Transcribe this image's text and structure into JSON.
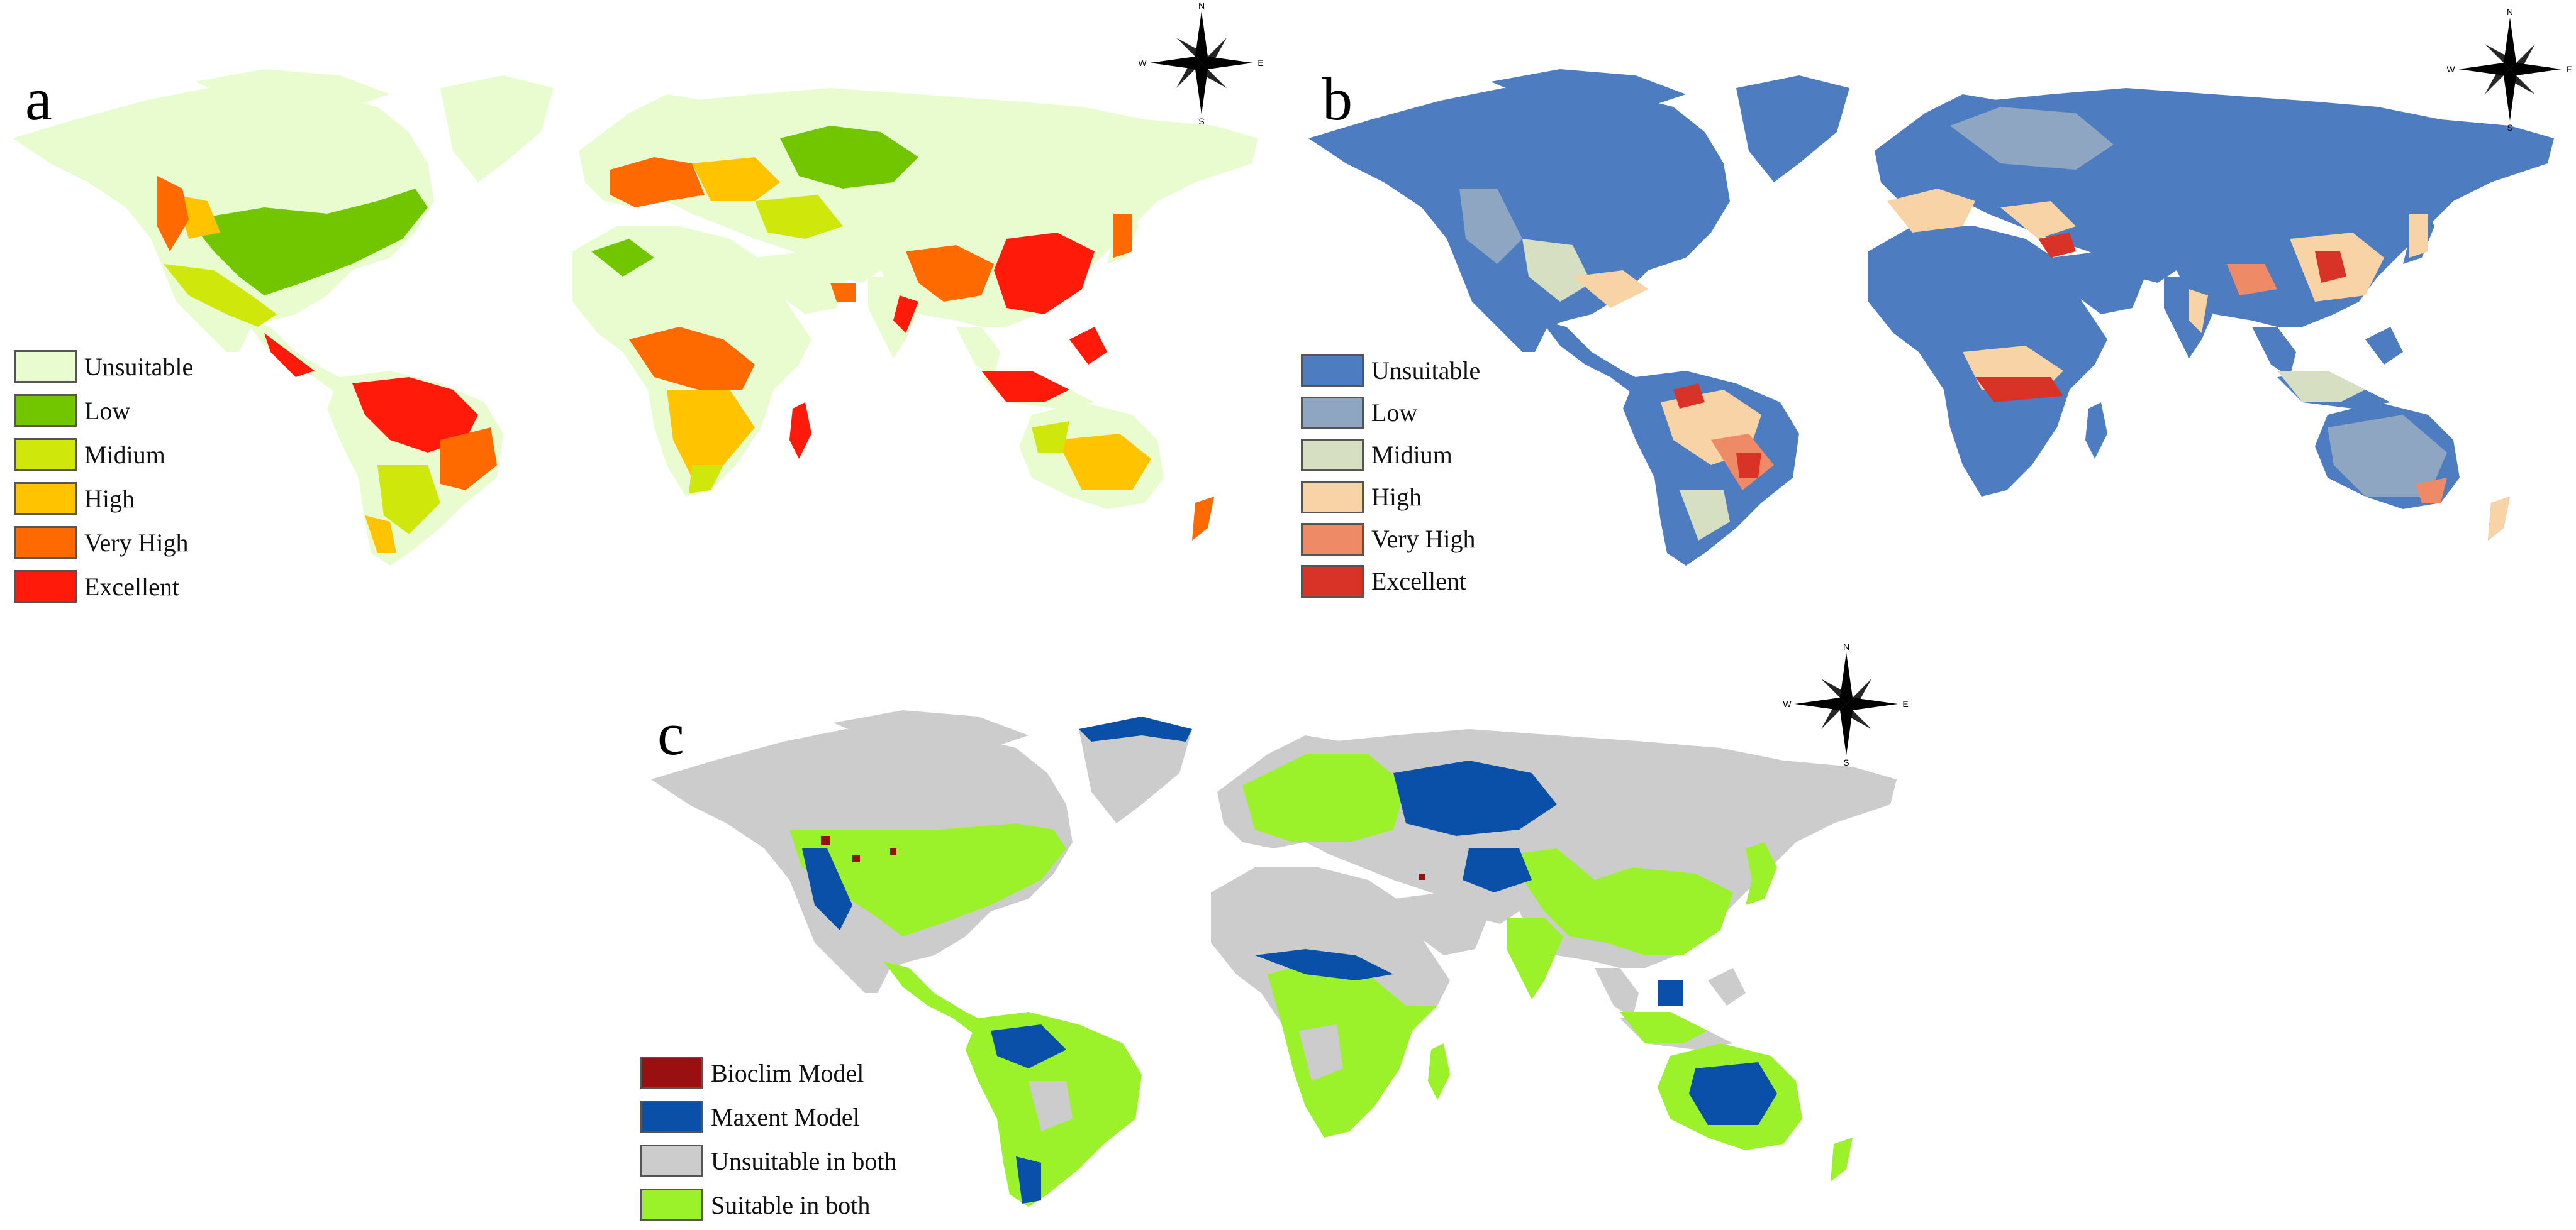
{
  "panels": [
    {
      "letter": "a",
      "colors": {
        "ocean": "#ffffff",
        "base": "#e9fcd0",
        "low": "#72c600",
        "mid": "#cfe70b",
        "high": "#ffc300",
        "vhigh": "#ff6a00",
        "exc": "#ff1a0a"
      },
      "legend": [
        {
          "label": "Unsuitable",
          "color": "#e9fcd0"
        },
        {
          "label": "Low",
          "color": "#72c600"
        },
        {
          "label": "Midium",
          "color": "#cfe70b"
        },
        {
          "label": "High",
          "color": "#ffc300"
        },
        {
          "label": "Very High",
          "color": "#ff6a00"
        },
        {
          "label": "Excellent",
          "color": "#ff1a0a"
        }
      ]
    },
    {
      "letter": "b",
      "colors": {
        "ocean": "#ffffff",
        "base": "#4d7cc0",
        "low": "#8ea6c2",
        "mid": "#d7dfc3",
        "high": "#f7d3a6",
        "vhigh": "#ee8a65",
        "exc": "#d93227"
      },
      "legend": [
        {
          "label": "Unsuitable",
          "color": "#4d7cc0"
        },
        {
          "label": "Low",
          "color": "#8ea6c2"
        },
        {
          "label": "Midium",
          "color": "#d7dfc3"
        },
        {
          "label": "High",
          "color": "#f7d3a6"
        },
        {
          "label": "Very High",
          "color": "#ee8a65"
        },
        {
          "label": "Excellent",
          "color": "#d93227"
        }
      ]
    },
    {
      "letter": "c",
      "colors": {
        "ocean": "#ffffff",
        "base": "#cccccc",
        "suit": "#9bf12a",
        "maxent": "#0a4fa8",
        "bioclim": "#9a1010"
      },
      "legend": [
        {
          "label": "Bioclim Model",
          "color": "#9a1010"
        },
        {
          "label": "Maxent Model",
          "color": "#0a4fa8"
        },
        {
          "label": "Unsuitable in both",
          "color": "#cccccc"
        },
        {
          "label": "Suitable in both",
          "color": "#9bf12a"
        }
      ]
    }
  ],
  "compass": {
    "n": "N",
    "s": "S",
    "e": "E",
    "w": "W"
  }
}
